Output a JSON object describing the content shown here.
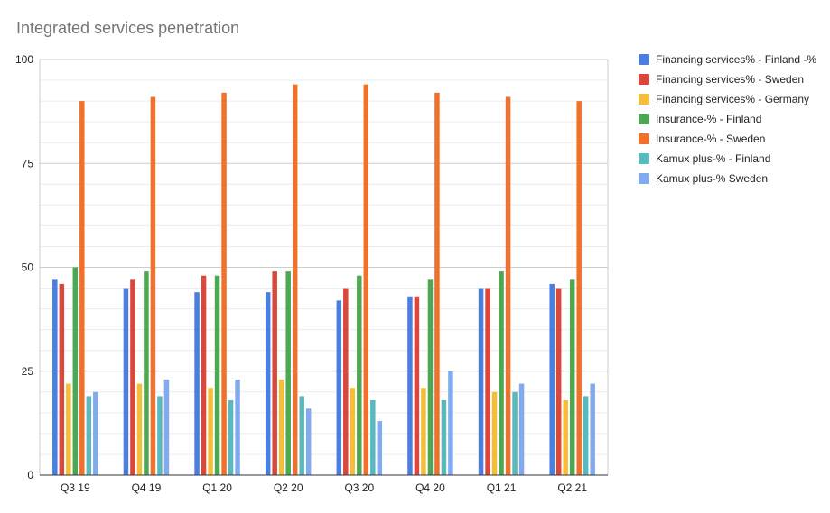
{
  "chart_data": {
    "type": "bar",
    "title": "Integrated services penetration",
    "xlabel": "",
    "ylabel": "",
    "ylim": [
      0,
      100
    ],
    "yticks": [
      "0",
      "25",
      "50",
      "75",
      "100"
    ],
    "grid": true,
    "legend_position": "right",
    "categories": [
      "Q3 19",
      "Q4 19",
      "Q1 20",
      "Q2 20",
      "Q3 20",
      "Q4 20",
      "Q1 21",
      "Q2 21"
    ],
    "series": [
      {
        "name": "Financing services% - Finland -%",
        "color": "#4a7fe0",
        "values": [
          47,
          45,
          44,
          44,
          42,
          43,
          45,
          46
        ]
      },
      {
        "name": "Financing services% - Sweden",
        "color": "#d9473d",
        "values": [
          46,
          47,
          48,
          49,
          45,
          43,
          45,
          45
        ]
      },
      {
        "name": "Financing services% - Germany",
        "color": "#f4bd3a",
        "values": [
          22,
          22,
          21,
          23,
          21,
          21,
          20,
          18
        ]
      },
      {
        "name": "Insurance-% - Finland",
        "color": "#4ea853",
        "values": [
          50,
          49,
          48,
          49,
          48,
          47,
          49,
          47
        ]
      },
      {
        "name": "Insurance-% - Sweden",
        "color": "#f0712c",
        "values": [
          90,
          91,
          92,
          94,
          94,
          92,
          91,
          90
        ]
      },
      {
        "name": "Kamux plus-% - Finland",
        "color": "#5ab9bd",
        "values": [
          19,
          19,
          18,
          19,
          18,
          18,
          20,
          19
        ]
      },
      {
        "name": "Kamux plus-% Sweden",
        "color": "#82aaee",
        "values": [
          20,
          23,
          23,
          16,
          13,
          25,
          22,
          22
        ]
      }
    ]
  }
}
